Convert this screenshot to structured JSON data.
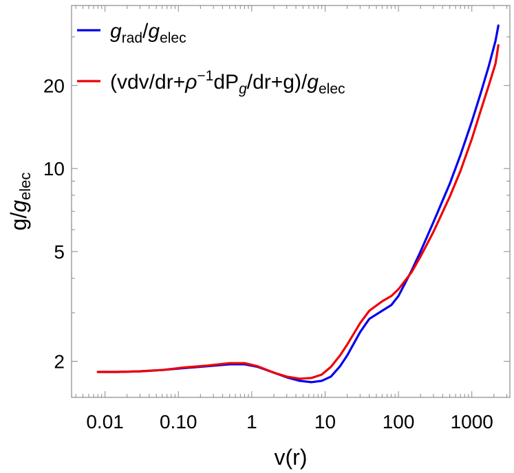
{
  "chart_data": {
    "type": "line",
    "xlabel": "v(r)",
    "ylabel": "g/g_elec",
    "xscale": "log",
    "yscale": "log",
    "xlim": [
      0.0035,
      3300
    ],
    "ylim": [
      1.48,
      39
    ],
    "grid": false,
    "legend_placement": "top-left",
    "x_ticks": [
      {
        "value": 0.01,
        "label": "0.01"
      },
      {
        "value": 0.1,
        "label": "0.10"
      },
      {
        "value": 1,
        "label": "1"
      },
      {
        "value": 10,
        "label": "10"
      },
      {
        "value": 100,
        "label": "100"
      },
      {
        "value": 1000,
        "label": "1000"
      }
    ],
    "y_ticks": [
      {
        "value": 2,
        "label": "2"
      },
      {
        "value": 5,
        "label": "5"
      },
      {
        "value": 10,
        "label": "10"
      },
      {
        "value": 20,
        "label": "20"
      }
    ],
    "series": [
      {
        "name": "g_rad/g_elec",
        "legend_parts": [
          {
            "t": "g",
            "style": "italic"
          },
          {
            "t": "rad",
            "style": "sub"
          },
          {
            "t": "/",
            "style": "normal"
          },
          {
            "t": "g",
            "style": "italic"
          },
          {
            "t": "elec",
            "style": "sub"
          }
        ],
        "color": "#0000ee",
        "x": [
          0.008,
          0.015,
          0.03,
          0.06,
          0.12,
          0.25,
          0.5,
          0.8,
          1.2,
          2.0,
          3.0,
          4.5,
          6.5,
          9.0,
          12,
          16,
          20,
          30,
          40,
          60,
          80,
          100,
          150,
          200,
          300,
          500,
          700,
          1000,
          1300,
          1700,
          2100,
          2300
        ],
        "y": [
          1.83,
          1.83,
          1.84,
          1.86,
          1.89,
          1.92,
          1.95,
          1.95,
          1.91,
          1.82,
          1.75,
          1.7,
          1.68,
          1.7,
          1.76,
          1.92,
          2.1,
          2.55,
          2.85,
          3.05,
          3.2,
          3.45,
          4.25,
          5.0,
          6.4,
          8.8,
          11.2,
          14.8,
          18.5,
          23.5,
          29,
          33
        ]
      },
      {
        "name": "(vdv/dr+ρ^-1 dP_g/dr+g)/g_elec",
        "legend_parts": [
          {
            "t": "(vdv/dr+",
            "style": "normal"
          },
          {
            "t": "ρ",
            "style": "italic"
          },
          {
            "t": "−1",
            "style": "sup"
          },
          {
            "t": "dP",
            "style": "normal"
          },
          {
            "t": "g",
            "style": "subitalic"
          },
          {
            "t": "/dr+g)/",
            "style": "normal"
          },
          {
            "t": "g",
            "style": "italic"
          },
          {
            "t": "elec",
            "style": "sub"
          }
        ],
        "color": "#ee0000",
        "x": [
          0.008,
          0.015,
          0.03,
          0.06,
          0.12,
          0.25,
          0.5,
          0.8,
          1.2,
          2.0,
          3.0,
          4.5,
          6.5,
          9.0,
          12,
          16,
          20,
          30,
          40,
          60,
          80,
          100,
          150,
          200,
          300,
          500,
          700,
          1000,
          1300,
          1700,
          2100,
          2300
        ],
        "y": [
          1.83,
          1.83,
          1.84,
          1.86,
          1.9,
          1.93,
          1.97,
          1.97,
          1.92,
          1.82,
          1.76,
          1.73,
          1.74,
          1.79,
          1.91,
          2.1,
          2.3,
          2.75,
          3.05,
          3.3,
          3.45,
          3.65,
          4.2,
          4.8,
          5.9,
          7.9,
          9.8,
          12.8,
          16,
          20,
          24,
          28
        ]
      }
    ]
  }
}
